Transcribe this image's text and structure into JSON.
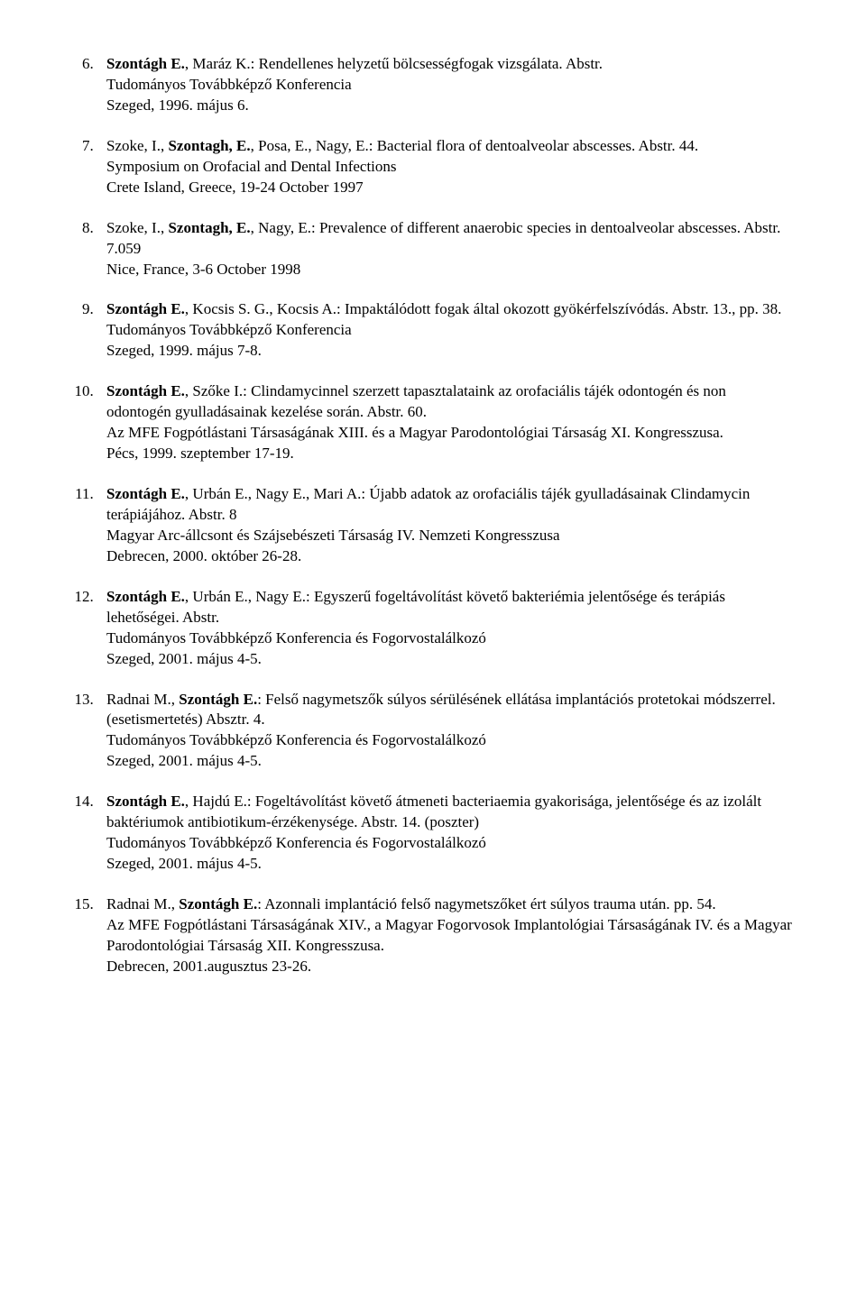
{
  "start": 6,
  "items": [
    {
      "pre": "",
      "bold": "Szontágh E.",
      "rest": ", Maráz K.: Rendellenes helyzetű bölcsességfogak vizsgálata. Abstr.\nTudományos Továbbképző Konferencia\nSzeged, 1996. május 6."
    },
    {
      "pre": "Szoke, I., ",
      "bold": "Szontagh, E.",
      "rest": ", Posa, E., Nagy, E.: Bacterial flora of dentoalveolar abscesses. Abstr. 44.\nSymposium on Orofacial and Dental Infections\nCrete Island, Greece, 19-24 October 1997"
    },
    {
      "pre": "Szoke, I., ",
      "bold": "Szontagh, E.",
      "rest": ", Nagy, E.: Prevalence of different anaerobic species in dentoalveolar abscesses. Abstr. 7.059\nNice, France, 3-6 October 1998"
    },
    {
      "pre": "",
      "bold": "Szontágh E.",
      "rest": ", Kocsis S. G., Kocsis A.: Impaktálódott fogak által okozott gyökérfelszívódás. Abstr. 13., pp. 38.\nTudományos Továbbképző Konferencia\nSzeged, 1999. május 7-8."
    },
    {
      "pre": "",
      "bold": "Szontágh E.",
      "rest": ", Szőke I.: Clindamycinnel szerzett tapasztalataink az orofaciális tájék odontogén és non odontogén gyulladásainak kezelése során. Abstr. 60.\nAz MFE Fogpótlástani Társaságának XIII. és a Magyar Parodontológiai Társaság XI. Kongresszusa.\nPécs, 1999. szeptember 17-19."
    },
    {
      "pre": "",
      "bold": "Szontágh E.",
      "rest": ", Urbán E., Nagy E., Mari A.: Újabb adatok az orofaciális tájék gyulladásainak Clindamycin terápiájához. Abstr. 8\nMagyar Arc-állcsont és Szájsebészeti Társaság IV. Nemzeti Kongresszusa\nDebrecen, 2000. október 26-28."
    },
    {
      "pre": "",
      "bold": "Szontágh E.",
      "rest": ", Urbán E., Nagy E.: Egyszerű fogeltávolítást követő bakteriémia jelentősége és terápiás lehetőségei. Abstr.\nTudományos Továbbképző Konferencia és Fogorvostalálkozó\nSzeged, 2001. május 4-5."
    },
    {
      "pre": "Radnai M., ",
      "bold": "Szontágh E.",
      "rest": ": Felső nagymetszők súlyos sérülésének ellátása implantációs protetokai módszerrel. (esetismertetés) Absztr. 4.\nTudományos Továbbképző Konferencia és Fogorvostalálkozó\nSzeged, 2001. május 4-5."
    },
    {
      "pre": "",
      "bold": "Szontágh E.",
      "rest": ", Hajdú E.: Fogeltávolítást követő átmeneti bacteriaemia gyakorisága, jelentősége és az izolált baktériumok antibiotikum-érzékenysége. Abstr. 14. (poszter)\nTudományos Továbbképző Konferencia és Fogorvostalálkozó\nSzeged, 2001. május 4-5."
    },
    {
      "pre": "Radnai M., ",
      "bold": "Szontágh E.",
      "rest": ": Azonnali implantáció felső nagymetszőket ért súlyos trauma után. pp. 54.\nAz MFE Fogpótlástani Társaságának XIV., a Magyar Fogorvosok Implantológiai Társaságának IV. és a Magyar Parodontológiai Társaság XII. Kongresszusa.\nDebrecen, 2001.augusztus 23-26."
    }
  ]
}
